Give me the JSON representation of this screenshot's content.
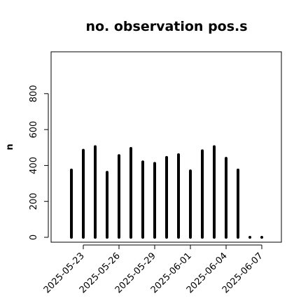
{
  "chart_data": {
    "type": "bar",
    "title": "no. observation pos.s",
    "xlabel": "",
    "ylabel": "n",
    "ylim": [
      0,
      1000
    ],
    "yticks": [
      0,
      200,
      400,
      600,
      800
    ],
    "x": [
      "2025-05-22",
      "2025-05-23",
      "2025-05-24",
      "2025-05-25",
      "2025-05-26",
      "2025-05-27",
      "2025-05-28",
      "2025-05-29",
      "2025-05-30",
      "2025-05-31",
      "2025-06-01",
      "2025-06-02",
      "2025-06-03",
      "2025-06-04",
      "2025-06-05",
      "2025-06-06",
      "2025-06-07"
    ],
    "values": [
      375,
      485,
      505,
      362,
      455,
      495,
      420,
      412,
      445,
      460,
      370,
      482,
      505,
      440,
      375,
      0,
      0
    ],
    "xticks": [
      {
        "label": "2025-05-23",
        "date": "2025-05-23",
        "color": "#000000"
      },
      {
        "label": "2025-05-26",
        "date": "2025-05-26",
        "color": "#000000"
      },
      {
        "label": "2025-05-29",
        "date": "2025-05-29",
        "color": "#228b22"
      },
      {
        "label": "2025-06-01",
        "date": "2025-06-01",
        "color": "#000000"
      },
      {
        "label": "2025-06-04",
        "date": "2025-06-04",
        "color": "#000000"
      },
      {
        "label": "2025-06-07",
        "date": "2025-06-07",
        "color": "#000000"
      }
    ],
    "bar_color": "#000000",
    "grid": false,
    "legend": "none"
  }
}
